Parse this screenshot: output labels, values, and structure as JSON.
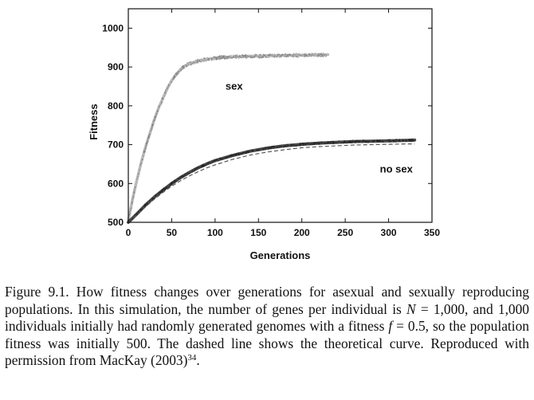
{
  "chart_data": {
    "type": "line",
    "title": "",
    "xlabel": "Generations",
    "ylabel": "Fitness",
    "xlim": [
      0,
      350
    ],
    "ylim": [
      500,
      1050
    ],
    "xticks": [
      0,
      50,
      100,
      150,
      200,
      250,
      300,
      350
    ],
    "yticks": [
      500,
      600,
      700,
      800,
      900,
      1000
    ],
    "grid": false,
    "series": [
      {
        "name": "sex",
        "style": "noisy",
        "color": "#8a8a8a",
        "x": [
          0,
          5,
          10,
          15,
          20,
          25,
          30,
          35,
          40,
          45,
          50,
          55,
          60,
          65,
          70,
          75,
          80,
          90,
          100,
          110,
          120,
          130,
          140,
          150,
          160,
          170,
          180,
          190,
          200,
          210,
          220,
          230
        ],
        "y": [
          505,
          560,
          610,
          655,
          695,
          730,
          765,
          795,
          820,
          845,
          865,
          880,
          893,
          902,
          908,
          912,
          915,
          920,
          923,
          925,
          926,
          927,
          928,
          928,
          929,
          929,
          930,
          930,
          930,
          931,
          931,
          932
        ]
      },
      {
        "name": "no sex",
        "style": "noisy-dark",
        "color": "#2a2a2a",
        "x": [
          0,
          10,
          20,
          30,
          40,
          50,
          60,
          70,
          80,
          90,
          100,
          120,
          140,
          160,
          180,
          200,
          220,
          240,
          260,
          280,
          300,
          320,
          330
        ],
        "y": [
          500,
          522,
          545,
          565,
          583,
          600,
          615,
          628,
          640,
          650,
          659,
          672,
          683,
          691,
          697,
          701,
          704,
          706,
          708,
          709,
          710,
          711,
          712
        ]
      },
      {
        "name": "theory",
        "style": "dashed",
        "color": "#555555",
        "x": [
          0,
          10,
          20,
          30,
          40,
          50,
          60,
          70,
          80,
          90,
          100,
          120,
          140,
          160,
          180,
          200,
          220,
          240,
          260,
          280,
          300,
          320,
          330
        ],
        "y": [
          500,
          520,
          540,
          560,
          577,
          593,
          607,
          619,
          630,
          640,
          648,
          662,
          673,
          681,
          687,
          692,
          695,
          697,
          699,
          700,
          701,
          702,
          702
        ]
      }
    ],
    "annotations": [
      {
        "text": "sex",
        "x": 112,
        "y": 842
      },
      {
        "text": "no sex",
        "x": 290,
        "y": 628
      }
    ]
  },
  "caption": {
    "parts": [
      {
        "t": "Figure 9.1. How fitness changes over generations for asexual and sexually reproducing populations.  In this simulation, the number of genes per individual is ",
        "math": false
      },
      {
        "t": "N",
        "math": true
      },
      {
        "t": " = 1,000, and 1,000 individuals initially had randomly generated genomes with a fitness ",
        "math": false
      },
      {
        "t": "f",
        "math": true
      },
      {
        "t": " = 0.5, so the population fitness was initially 500. The dashed line shows the theoretical curve. Reproduced with permission from MacKay (2003)",
        "math": false
      }
    ],
    "sup": "34",
    "end": "."
  }
}
